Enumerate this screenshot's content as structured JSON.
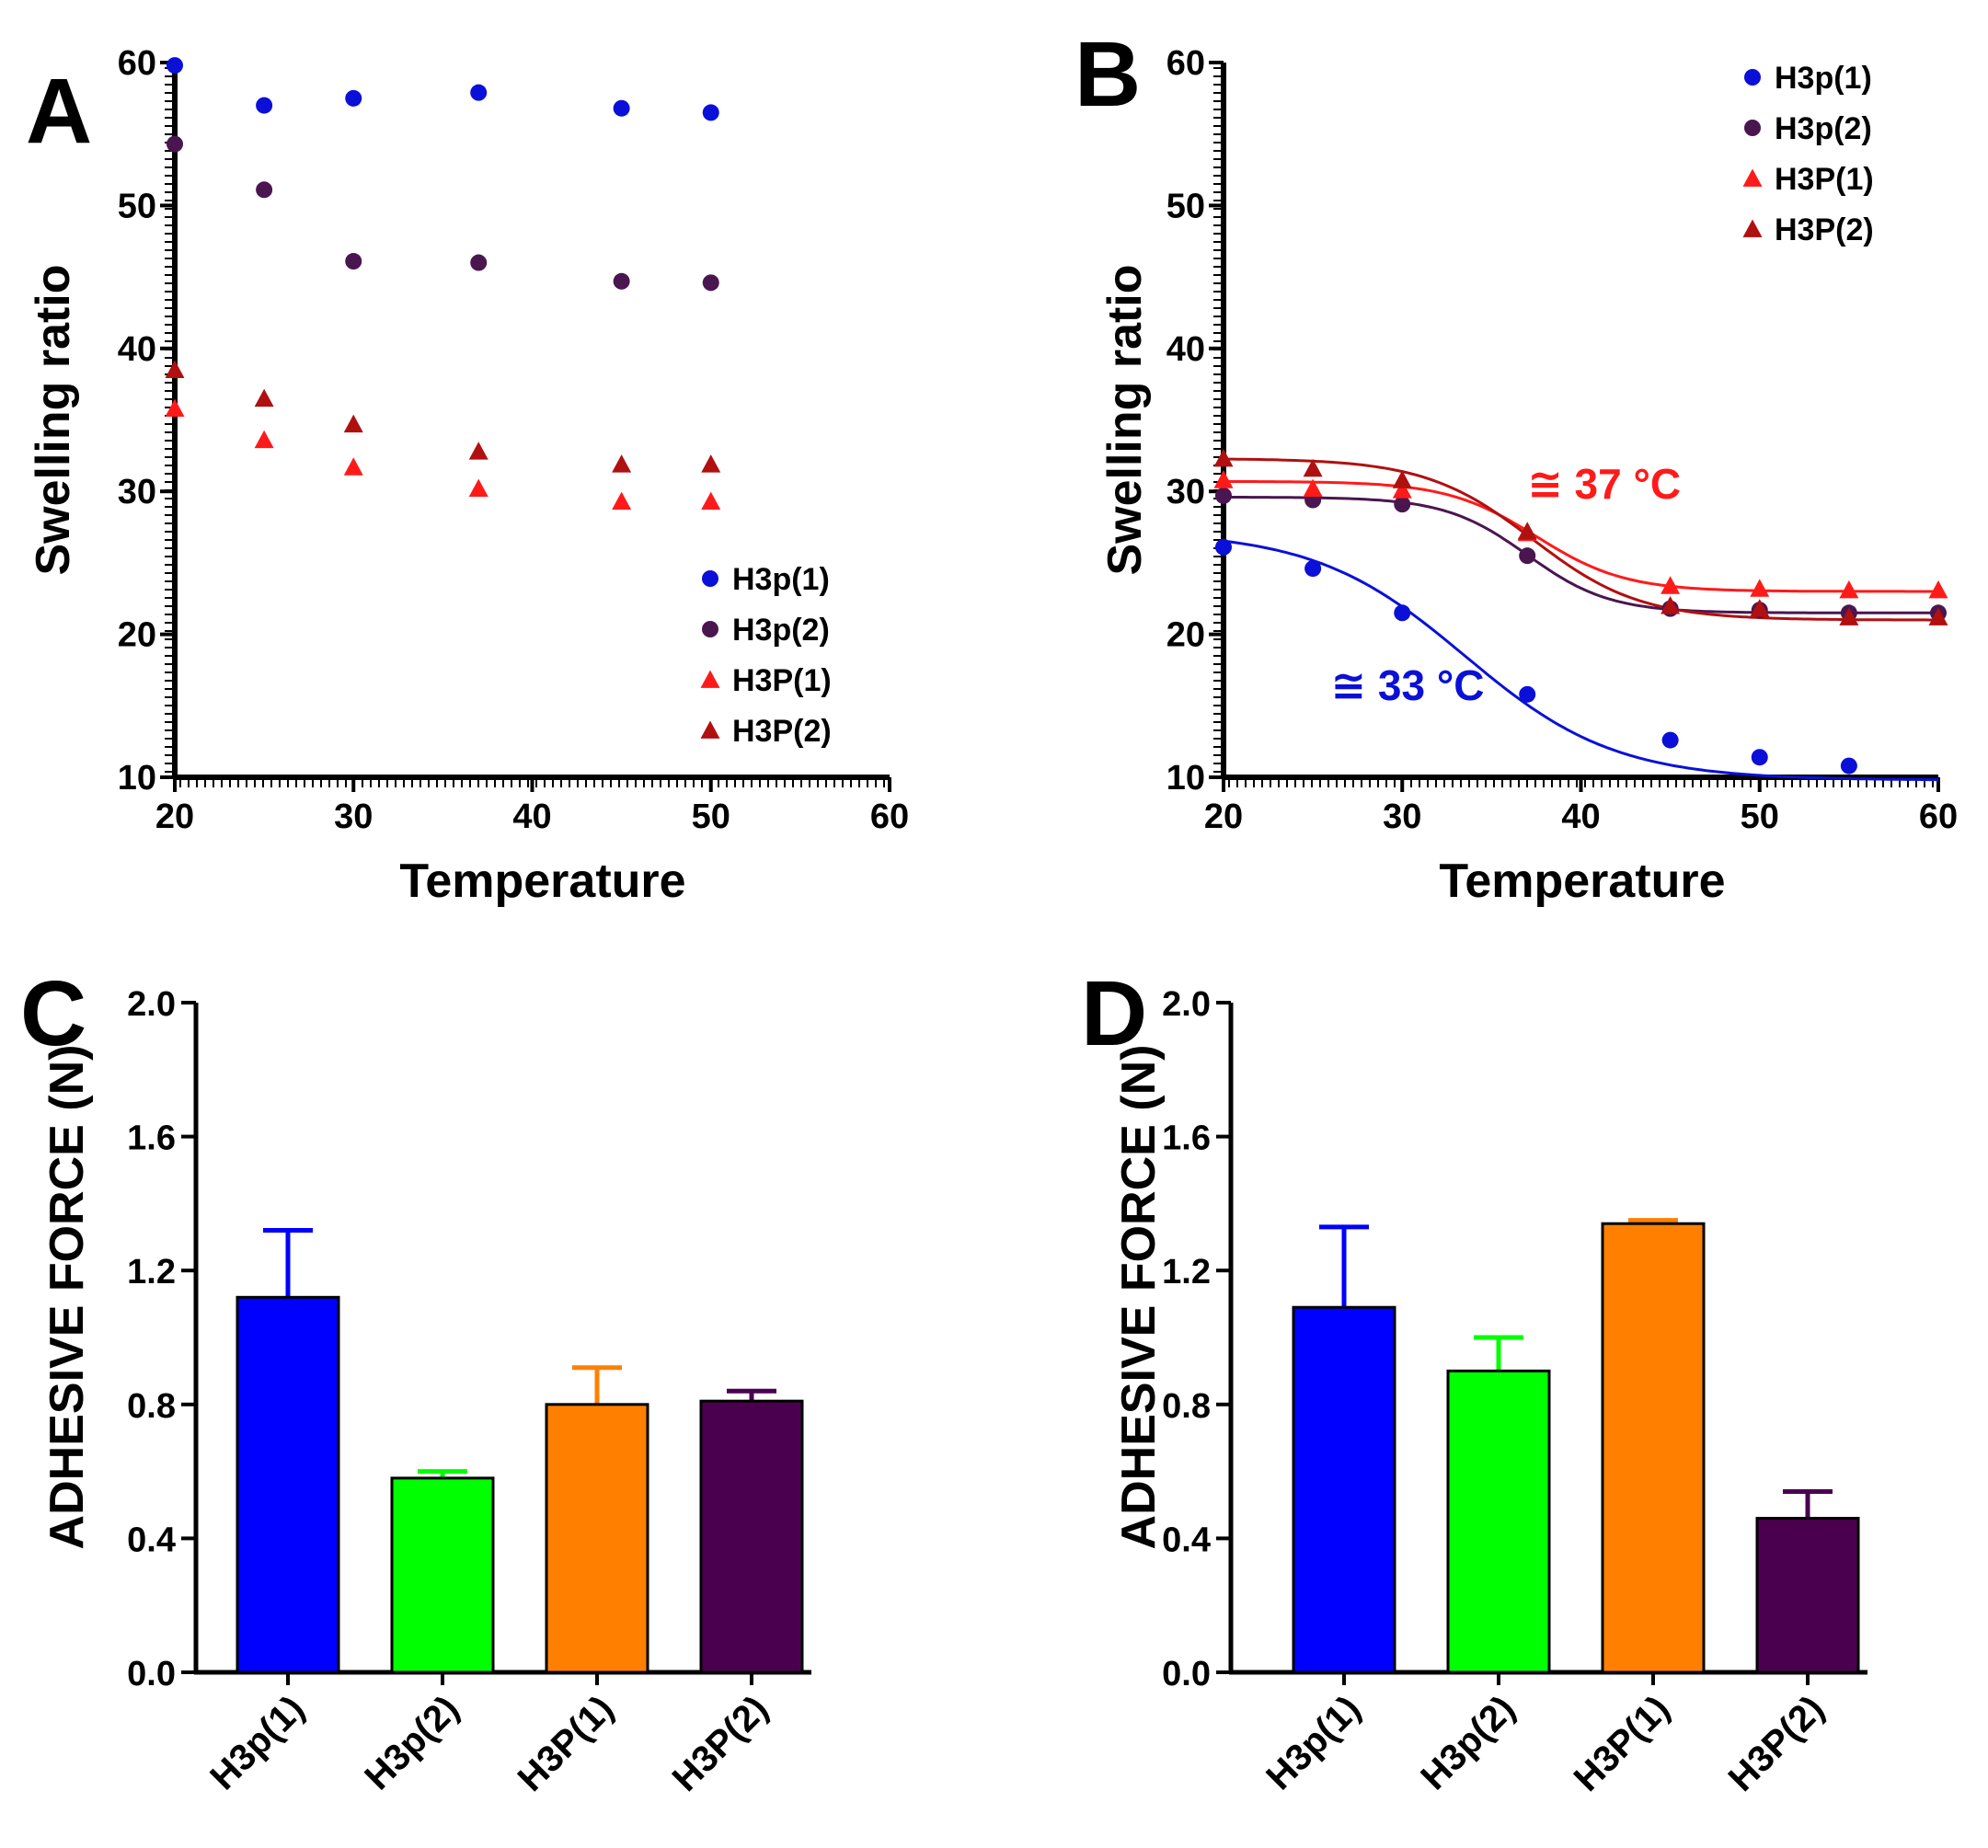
{
  "chart_data": [
    {
      "panel": "A",
      "type": "scatter",
      "xlabel": "Temperature",
      "ylabel": "Swelling ratio",
      "xlim": [
        20,
        60
      ],
      "ylim": [
        10,
        60
      ],
      "xticks": [
        20,
        30,
        40,
        50,
        60
      ],
      "yticks": [
        10,
        20,
        30,
        40,
        50,
        60
      ],
      "legend_position": "bottom-right",
      "series": [
        {
          "name": "H3p(1)",
          "marker": "circle",
          "color": "#0a10d8",
          "x": [
            20,
            25,
            30,
            37,
            45,
            50
          ],
          "y": [
            59.8,
            57.0,
            57.5,
            57.9,
            56.8,
            56.5
          ]
        },
        {
          "name": "H3p(2)",
          "marker": "circle",
          "color": "#4a1650",
          "x": [
            20,
            25,
            30,
            37,
            45,
            50
          ],
          "y": [
            54.3,
            51.1,
            46.1,
            46.0,
            44.7,
            44.6
          ]
        },
        {
          "name": "H3P(1)",
          "marker": "triangle",
          "color": "#ff1a1a",
          "x": [
            20,
            25,
            30,
            37,
            45,
            50
          ],
          "y": [
            35.8,
            33.6,
            31.7,
            30.2,
            29.3,
            29.3
          ]
        },
        {
          "name": "H3P(2)",
          "marker": "triangle",
          "color": "#b01010",
          "x": [
            20,
            25,
            30,
            37,
            45,
            50
          ],
          "y": [
            38.5,
            36.5,
            34.7,
            32.8,
            31.9,
            31.9
          ]
        }
      ]
    },
    {
      "panel": "B",
      "type": "scatter",
      "xlabel": "Temperature",
      "ylabel": "Swelling ratio",
      "xlim": [
        20,
        60
      ],
      "ylim": [
        10,
        60
      ],
      "xticks": [
        20,
        30,
        40,
        50,
        60
      ],
      "yticks": [
        10,
        20,
        30,
        40,
        50,
        60
      ],
      "legend_position": "top-right",
      "series": [
        {
          "name": "H3p(1)",
          "marker": "circle",
          "color": "#0a10d8",
          "x": [
            20,
            25,
            30,
            37,
            45,
            50,
            55
          ],
          "y": [
            26.1,
            24.6,
            21.5,
            15.8,
            12.6,
            11.4,
            10.8
          ],
          "fit": {
            "bottom": 9.8,
            "top": 27.2,
            "v50": 33.5,
            "slope": 4.2
          }
        },
        {
          "name": "H3p(2)",
          "marker": "circle",
          "color": "#4a1650",
          "x": [
            20,
            25,
            30,
            37,
            45,
            50,
            55,
            60
          ],
          "y": [
            29.7,
            29.4,
            29.1,
            25.5,
            21.8,
            21.7,
            21.5,
            21.5
          ],
          "fit": {
            "bottom": 21.5,
            "top": 29.6,
            "v50": 37.0,
            "slope": 2.3
          }
        },
        {
          "name": "H3P(1)",
          "marker": "triangle",
          "color": "#ff1a1a",
          "x": [
            20,
            25,
            30,
            37,
            45,
            50,
            55,
            60
          ],
          "y": [
            30.8,
            30.2,
            30.1,
            27.1,
            23.4,
            23.2,
            23.1,
            23.1
          ],
          "fit": {
            "bottom": 23.0,
            "top": 30.7,
            "v50": 37.5,
            "slope": 2.5
          }
        },
        {
          "name": "H3P(2)",
          "marker": "triangle",
          "color": "#b01010",
          "x": [
            20,
            25,
            30,
            37,
            45,
            50,
            55,
            60
          ],
          "y": [
            32.3,
            31.6,
            30.8,
            27.2,
            22.0,
            21.8,
            21.2,
            21.2
          ],
          "fit": {
            "bottom": 21.0,
            "top": 32.3,
            "v50": 37.3,
            "slope": 3.0
          }
        }
      ],
      "annotations": [
        {
          "text": "≅ 37 °C",
          "color": "#ff1a1a",
          "x": 37.0,
          "y": 29.5
        },
        {
          "text": "≅ 33 °C",
          "color": "#0a10d8",
          "x": 26.0,
          "y": 15.4
        }
      ]
    },
    {
      "panel": "C",
      "type": "bar",
      "ylabel": "ADHESIVE FORCE (N)",
      "ylim": [
        0,
        2.0
      ],
      "yticks": [
        "0.0",
        "0.4",
        "0.8",
        "1.2",
        "1.6",
        "2.0"
      ],
      "categories": [
        "H3p(1)",
        "H3p(2)",
        "H3P(1)",
        "H3P(2)"
      ],
      "values": [
        1.12,
        0.58,
        0.8,
        0.81
      ],
      "errors": [
        0.2,
        0.02,
        0.11,
        0.03
      ],
      "colors": [
        "#0000ff",
        "#00ff00",
        "#ff8000",
        "#4b004f"
      ]
    },
    {
      "panel": "D",
      "type": "bar",
      "ylabel": "ADHESIVE FORCE (N)",
      "ylim": [
        0,
        2.0
      ],
      "yticks": [
        "0.0",
        "0.4",
        "0.8",
        "1.2",
        "1.6",
        "2.0"
      ],
      "categories": [
        "H3p(1)",
        "H3p(2)",
        "H3P(1)",
        "H3P(2)"
      ],
      "values": [
        1.09,
        0.9,
        1.34,
        0.46
      ],
      "errors": [
        0.24,
        0.1,
        0.01,
        0.08
      ],
      "colors": [
        "#0000ff",
        "#00ff00",
        "#ff8000",
        "#4b004f"
      ]
    }
  ]
}
